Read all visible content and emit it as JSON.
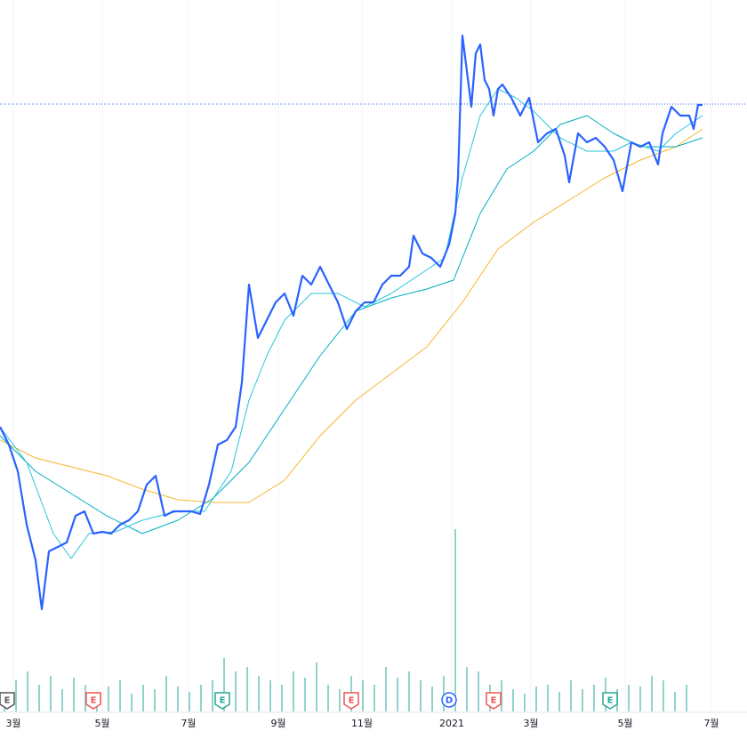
{
  "chart_data": {
    "type": "line",
    "xlim": [
      0,
      840
    ],
    "ylim": [
      0,
      730
    ],
    "xticks": [
      {
        "value": 15,
        "label": "3월"
      },
      {
        "value": 115,
        "label": "5월"
      },
      {
        "value": 212,
        "label": "7월"
      },
      {
        "value": 313,
        "label": "9월"
      },
      {
        "value": 407,
        "label": "11월"
      },
      {
        "value": 508,
        "label": "2021"
      },
      {
        "value": 597,
        "label": "3월"
      },
      {
        "value": 703,
        "label": "5월"
      },
      {
        "value": 800,
        "label": "7월"
      }
    ],
    "last_price": 613,
    "grid": true,
    "series": [
      {
        "color": "#2962ff",
        "width": 2.2,
        "x": [
          0,
          10,
          20,
          30,
          40,
          47,
          55,
          65,
          75,
          85,
          95,
          105,
          115,
          125,
          135,
          145,
          155,
          165,
          175,
          185,
          195,
          205,
          215,
          225,
          235,
          245,
          255,
          265,
          272,
          280,
          290,
          300,
          310,
          320,
          330,
          340,
          350,
          360,
          370,
          380,
          390,
          400,
          410,
          420,
          430,
          440,
          450,
          460,
          465,
          475,
          485,
          495,
          505,
          512,
          515,
          520,
          525,
          530,
          535,
          540,
          545,
          550,
          555,
          560,
          565,
          575,
          585,
          595,
          605,
          615,
          625,
          635,
          640,
          650,
          660,
          670,
          680,
          690,
          700,
          710,
          720,
          730,
          740,
          745,
          755,
          765,
          775,
          780,
          785,
          790
        ],
        "values": [
          250,
          230,
          200,
          140,
          100,
          45,
          110,
          115,
          120,
          150,
          155,
          130,
          132,
          130,
          140,
          145,
          155,
          185,
          195,
          150,
          155,
          155,
          155,
          152,
          185,
          230,
          235,
          250,
          300,
          410,
          350,
          370,
          390,
          400,
          375,
          420,
          410,
          430,
          410,
          390,
          360,
          380,
          390,
          390,
          410,
          420,
          420,
          430,
          465,
          445,
          440,
          430,
          455,
          490,
          530,
          690,
          650,
          610,
          670,
          680,
          640,
          630,
          600,
          630,
          635,
          620,
          600,
          620,
          570,
          580,
          585,
          555,
          525,
          580,
          570,
          575,
          565,
          550,
          515,
          570,
          565,
          570,
          545,
          580,
          610,
          600,
          600,
          585,
          612,
          612
        ]
      },
      {
        "color": "#26c6da",
        "width": 1,
        "x": [
          0,
          30,
          60,
          80,
          100,
          130,
          160,
          200,
          230,
          260,
          280,
          300,
          320,
          350,
          380,
          410,
          440,
          470,
          500,
          520,
          540,
          560,
          580,
          600,
          630,
          660,
          690,
          710,
          740,
          760,
          790
        ],
        "values": [
          250,
          210,
          130,
          102,
          130,
          132,
          145,
          155,
          155,
          200,
          280,
          330,
          370,
          400,
          400,
          385,
          400,
          420,
          440,
          530,
          600,
          630,
          620,
          605,
          575,
          560,
          560,
          570,
          560,
          580,
          600
        ]
      },
      {
        "color": "#00acc1",
        "width": 1,
        "x": [
          0,
          40,
          80,
          120,
          160,
          200,
          240,
          280,
          320,
          360,
          400,
          440,
          480,
          510,
          540,
          570,
          600,
          630,
          660,
          690,
          720,
          760,
          790
        ],
        "values": [
          240,
          200,
          175,
          150,
          130,
          145,
          170,
          210,
          270,
          330,
          380,
          395,
          405,
          415,
          490,
          540,
          560,
          590,
          600,
          580,
          565,
          565,
          575
        ]
      },
      {
        "color": "#f5b52e",
        "width": 1,
        "x": [
          0,
          40,
          80,
          120,
          160,
          200,
          240,
          280,
          320,
          360,
          400,
          440,
          480,
          520,
          560,
          600,
          640,
          680,
          720,
          760,
          790
        ],
        "values": [
          235,
          215,
          205,
          195,
          180,
          168,
          165,
          165,
          190,
          240,
          280,
          310,
          340,
          390,
          450,
          480,
          505,
          530,
          550,
          565,
          585
        ]
      }
    ],
    "volume": {
      "color": "#26a69a",
      "ylim": [
        0,
        230
      ],
      "x": [
        5,
        18,
        31,
        44,
        57,
        70,
        83,
        96,
        109,
        122,
        135,
        148,
        161,
        174,
        187,
        200,
        213,
        226,
        239,
        252,
        265,
        278,
        291,
        304,
        317,
        330,
        343,
        356,
        369,
        382,
        395,
        408,
        421,
        434,
        447,
        460,
        473,
        486,
        499,
        512,
        525,
        538,
        551,
        564,
        577,
        590,
        603,
        616,
        629,
        642,
        655,
        668,
        681,
        694,
        707,
        720,
        733,
        746,
        759,
        772
      ],
      "values": [
        20,
        35,
        45,
        30,
        40,
        25,
        38,
        30,
        22,
        28,
        35,
        20,
        30,
        25,
        40,
        28,
        22,
        30,
        35,
        60,
        45,
        50,
        40,
        35,
        30,
        45,
        38,
        55,
        30,
        25,
        40,
        35,
        30,
        50,
        38,
        45,
        35,
        28,
        40,
        205,
        50,
        45,
        30,
        35,
        25,
        20,
        28,
        30,
        22,
        35,
        25,
        30,
        38,
        25,
        30,
        28,
        40,
        35,
        22,
        30
      ]
    },
    "events": [
      {
        "x": 8,
        "label": "E",
        "color": "#555555"
      },
      {
        "x": 105,
        "label": "E",
        "color": "#ef5350"
      },
      {
        "x": 250,
        "label": "E",
        "color": "#26a69a"
      },
      {
        "x": 395,
        "label": "E",
        "color": "#ef5350"
      },
      {
        "x": 505,
        "label": "D",
        "color": "#2962ff"
      },
      {
        "x": 555,
        "label": "E",
        "color": "#ef5350"
      },
      {
        "x": 686,
        "label": "E",
        "color": "#26a69a"
      }
    ]
  }
}
